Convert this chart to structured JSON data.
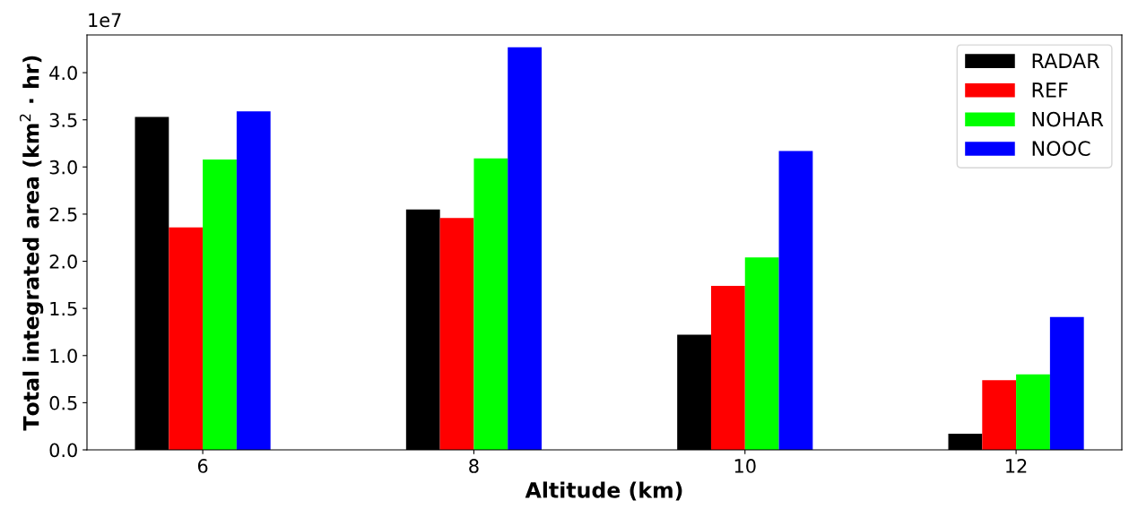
{
  "chart_data": {
    "type": "bar",
    "xlabel": "Altitude (km)",
    "ylabel": "Total integrated area (km$^{2}$ · hr)",
    "categories": [
      "6",
      "8",
      "10",
      "12"
    ],
    "series": [
      {
        "name": "RADAR",
        "color": "#000000",
        "values": [
          3.53,
          2.55,
          1.22,
          0.17
        ]
      },
      {
        "name": "REF",
        "color": "#ff0000",
        "values": [
          2.36,
          2.46,
          1.74,
          0.74
        ]
      },
      {
        "name": "NOHAR",
        "color": "#00ff00",
        "values": [
          3.08,
          3.09,
          2.04,
          0.8
        ]
      },
      {
        "name": "NOOC",
        "color": "#0000ff",
        "values": [
          3.59,
          4.27,
          3.17,
          1.41
        ]
      }
    ],
    "ylim": [
      0,
      4.4
    ],
    "yticks": [
      {
        "value": 0,
        "label": "0.0"
      },
      0.5,
      {
        "value": 1,
        "label": "1.0"
      },
      1.5,
      {
        "value": 2,
        "label": "2.0"
      },
      2.5,
      {
        "value": 3,
        "label": "3.0"
      },
      3.5,
      {
        "value": 4,
        "label": "4.0"
      }
    ],
    "annotations": [
      "1e7"
    ],
    "legend": "top right",
    "grid": false
  }
}
